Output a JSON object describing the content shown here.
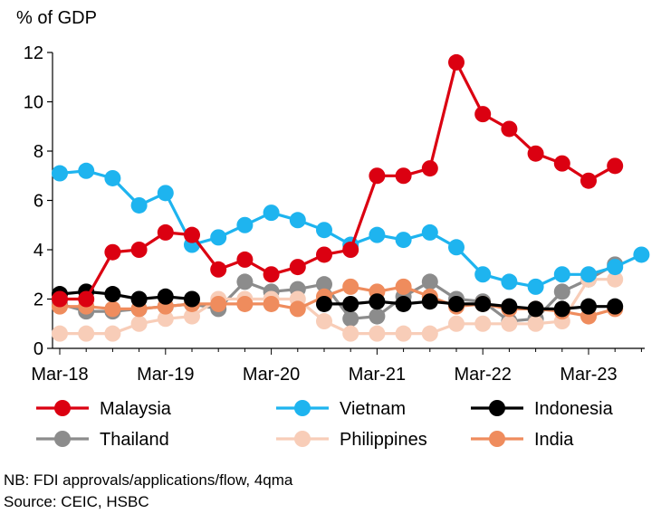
{
  "chart_data": {
    "type": "line",
    "ylabel": "% of GDP",
    "ylim": [
      0,
      12
    ],
    "yticks": [
      0,
      2,
      4,
      6,
      8,
      10,
      12
    ],
    "x_tick_labels": [
      "Mar-18",
      "Mar-19",
      "Mar-20",
      "Mar-21",
      "Mar-22",
      "Mar-23"
    ],
    "x_tick_indices": [
      0,
      4,
      8,
      12,
      16,
      20
    ],
    "n_periods": 23,
    "grid": false,
    "legend_position": "bottom",
    "series": [
      {
        "name": "Thailand",
        "color": "#8c8c8c",
        "values": [
          1.8,
          1.5,
          1.5,
          1.6,
          1.7,
          1.8,
          1.6,
          2.7,
          2.3,
          2.4,
          2.6,
          1.2,
          1.3,
          2.1,
          2.7,
          2.0,
          1.9,
          1.1,
          1.2,
          2.3,
          2.8,
          3.4,
          null
        ]
      },
      {
        "name": "Philippines",
        "color": "#f8cdb8",
        "values": [
          0.6,
          0.6,
          0.6,
          1.0,
          1.2,
          1.3,
          2.0,
          2.0,
          2.0,
          2.0,
          1.1,
          0.6,
          0.6,
          0.6,
          0.6,
          1.0,
          1.0,
          1.0,
          1.0,
          1.1,
          2.8,
          2.8,
          null
        ]
      },
      {
        "name": "India",
        "color": "#ef8c5d",
        "values": [
          1.7,
          1.7,
          1.6,
          1.6,
          1.7,
          1.8,
          1.8,
          1.8,
          1.8,
          1.6,
          2.1,
          2.5,
          2.3,
          2.5,
          2.1,
          1.7,
          1.8,
          1.6,
          1.6,
          1.5,
          1.3,
          1.6,
          null
        ]
      },
      {
        "name": "Indonesia",
        "color": "#000000",
        "values": [
          2.2,
          2.3,
          2.2,
          2.0,
          2.1,
          2.0,
          null,
          null,
          null,
          null,
          1.8,
          1.8,
          1.9,
          1.8,
          1.9,
          1.8,
          1.8,
          1.7,
          1.6,
          1.6,
          1.7,
          1.7,
          null
        ]
      },
      {
        "name": "Vietnam",
        "color": "#1eb4ef",
        "values": [
          7.1,
          7.2,
          6.9,
          5.8,
          6.3,
          4.2,
          4.5,
          5.0,
          5.5,
          5.2,
          4.8,
          4.2,
          4.6,
          4.4,
          4.7,
          4.1,
          3.0,
          2.7,
          2.5,
          3.0,
          3.0,
          3.3,
          3.8
        ]
      },
      {
        "name": "Malaysia",
        "color": "#db0011",
        "values": [
          2.0,
          2.0,
          3.9,
          4.0,
          4.7,
          4.6,
          3.2,
          3.6,
          3.0,
          3.3,
          3.8,
          4.0,
          7.0,
          7.0,
          7.3,
          11.6,
          9.5,
          8.9,
          7.9,
          7.5,
          6.8,
          7.4,
          null
        ]
      }
    ],
    "legend": [
      [
        "Malaysia",
        "Vietnam",
        "Indonesia"
      ],
      [
        "Thailand",
        "Philippines",
        "India"
      ]
    ]
  },
  "notes": {
    "nb": "NB: FDI approvals/applications/flow, 4qma",
    "source": "Source: CEIC, HSBC"
  }
}
